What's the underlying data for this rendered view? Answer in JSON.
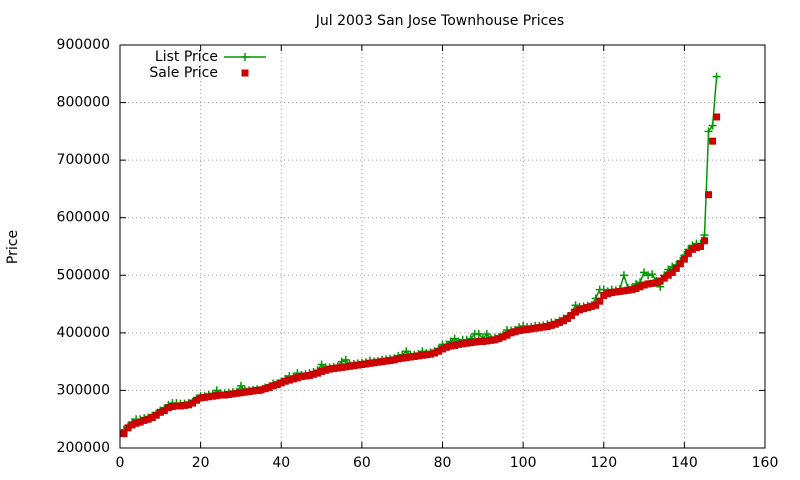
{
  "chart_data": {
    "type": "line",
    "title": "Jul 2003 San Jose Townhouse Prices",
    "ylabel": "Price",
    "xlim": [
      0,
      160
    ],
    "xticks": [
      0,
      20,
      40,
      60,
      80,
      100,
      120,
      140,
      160
    ],
    "ylim": [
      200000,
      900000
    ],
    "yticks": [
      200000,
      300000,
      400000,
      500000,
      600000,
      700000,
      800000,
      900000
    ],
    "grid": true,
    "legend": "top-left",
    "x": [
      1,
      2,
      3,
      4,
      5,
      6,
      7,
      8,
      9,
      10,
      11,
      12,
      13,
      14,
      15,
      16,
      17,
      18,
      19,
      20,
      21,
      22,
      23,
      24,
      25,
      26,
      27,
      28,
      29,
      30,
      31,
      32,
      33,
      34,
      35,
      36,
      37,
      38,
      39,
      40,
      41,
      42,
      43,
      44,
      45,
      46,
      47,
      48,
      49,
      50,
      51,
      52,
      53,
      54,
      55,
      56,
      57,
      58,
      59,
      60,
      61,
      62,
      63,
      64,
      65,
      66,
      67,
      68,
      69,
      70,
      71,
      72,
      73,
      74,
      75,
      76,
      77,
      78,
      79,
      80,
      81,
      82,
      83,
      84,
      85,
      86,
      87,
      88,
      89,
      90,
      91,
      92,
      93,
      94,
      95,
      96,
      97,
      98,
      99,
      100,
      101,
      102,
      103,
      104,
      105,
      106,
      107,
      108,
      109,
      110,
      111,
      112,
      113,
      114,
      115,
      116,
      117,
      118,
      119,
      120,
      121,
      122,
      123,
      124,
      125,
      126,
      127,
      128,
      129,
      130,
      131,
      132,
      133,
      134,
      135,
      136,
      137,
      138,
      139,
      140,
      141,
      142,
      143,
      144,
      145,
      146,
      147,
      148
    ],
    "series": [
      {
        "name": "List Price",
        "color": "#009900",
        "style": "linespoints",
        "values": [
          232000,
          238000,
          245000,
          250000,
          250000,
          252000,
          253000,
          256000,
          260000,
          265000,
          268000,
          275000,
          278000,
          278000,
          277000,
          277000,
          278000,
          280000,
          286000,
          290000,
          290000,
          292000,
          293000,
          300000,
          295000,
          295000,
          296000,
          297000,
          298000,
          308000,
          300000,
          300000,
          301000,
          302000,
          300000,
          305000,
          307000,
          312000,
          312000,
          315000,
          320000,
          325000,
          324000,
          330000,
          327000,
          328000,
          330000,
          332000,
          335000,
          345000,
          340000,
          340000,
          341000,
          342000,
          350000,
          353000,
          345000,
          346000,
          347000,
          348000,
          349000,
          352000,
          350000,
          351000,
          353000,
          354000,
          355000,
          356000,
          360000,
          362000,
          368000,
          362000,
          362000,
          363000,
          368000,
          365000,
          366000,
          368000,
          372000,
          380000,
          380000,
          385000,
          390000,
          385000,
          388000,
          388000,
          390000,
          398000,
          398000,
          390000,
          398000,
          390000,
          392000,
          393000,
          396000,
          405000,
          404000,
          405000,
          410000,
          412000,
          410000,
          410000,
          412000,
          412000,
          413000,
          415000,
          418000,
          418000,
          421000,
          425000,
          428000,
          435000,
          448000,
          445000,
          446000,
          447000,
          448000,
          460000,
          475000,
          475000,
          472000,
          475000,
          474000,
          476000,
          500000,
          478000,
          478000,
          485000,
          488000,
          505000,
          500000,
          502000,
          490000,
          480000,
          500000,
          510000,
          515000,
          518000,
          525000,
          535000,
          545000,
          552000,
          555000,
          555000,
          570000,
          750000,
          760000,
          845000
        ]
      },
      {
        "name": "Sale Price",
        "color": "#cc0000",
        "style": "points",
        "values": [
          225000,
          235000,
          240000,
          243000,
          245000,
          248000,
          250000,
          253000,
          257000,
          262000,
          265000,
          270000,
          272000,
          273000,
          273000,
          274000,
          275000,
          278000,
          283000,
          287000,
          288000,
          289000,
          290000,
          291000,
          292000,
          292000,
          293000,
          294000,
          295000,
          296000,
          297000,
          298000,
          299000,
          300000,
          301000,
          303000,
          305000,
          308000,
          310000,
          313000,
          316000,
          318000,
          320000,
          322000,
          324000,
          325000,
          326000,
          328000,
          330000,
          333000,
          335000,
          337000,
          338000,
          339000,
          340000,
          341000,
          342000,
          343000,
          344000,
          345000,
          346000,
          347000,
          348000,
          349000,
          350000,
          351000,
          352000,
          353000,
          355000,
          356000,
          357000,
          358000,
          359000,
          360000,
          361000,
          362000,
          363000,
          365000,
          368000,
          372000,
          375000,
          377000,
          378000,
          380000,
          381000,
          382000,
          383000,
          384000,
          385000,
          385000,
          386000,
          387000,
          388000,
          390000,
          393000,
          396000,
          400000,
          402000,
          404000,
          405000,
          406000,
          407000,
          408000,
          409000,
          410000,
          411000,
          413000,
          415000,
          418000,
          421000,
          425000,
          430000,
          436000,
          440000,
          442000,
          444000,
          446000,
          448000,
          455000,
          465000,
          468000,
          470000,
          471000,
          472000,
          473000,
          474000,
          475000,
          477000,
          480000,
          483000,
          485000,
          486000,
          487000,
          490000,
          495000,
          500000,
          505000,
          512000,
          520000,
          528000,
          538000,
          545000,
          548000,
          550000,
          560000,
          640000,
          733000,
          775000
        ]
      }
    ]
  }
}
